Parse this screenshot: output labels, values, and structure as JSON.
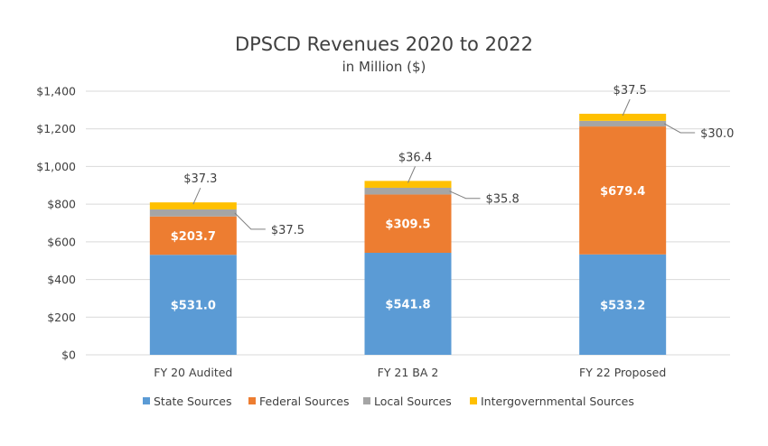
{
  "chart_data": {
    "type": "bar",
    "stacked": true,
    "title": "DPSCD Revenues 2020 to 2022",
    "subtitle": "in Million ($)",
    "categories": [
      "FY 20 Audited",
      "FY 21 BA 2",
      "FY 22 Proposed"
    ],
    "ylim": [
      0,
      1400
    ],
    "yticks": [
      0,
      200,
      400,
      600,
      800,
      1000,
      1200,
      1400
    ],
    "ytick_labels": [
      "$0",
      "$200",
      "$400",
      "$600",
      "$800",
      "$1,000",
      "$1,200",
      "$1,400"
    ],
    "grid": true,
    "legend_position": "bottom",
    "series": [
      {
        "name": "State Sources",
        "color": "#5B9BD5",
        "values": [
          531.0,
          541.8,
          533.2
        ],
        "labels": [
          "$531.0",
          "$541.8",
          "$533.2"
        ]
      },
      {
        "name": "Federal Sources",
        "color": "#ED7D31",
        "values": [
          203.7,
          309.5,
          679.4
        ],
        "labels": [
          "$203.7",
          "$309.5",
          "$679.4"
        ]
      },
      {
        "name": "Local Sources",
        "color": "#A5A5A5",
        "values": [
          37.5,
          35.8,
          30.0
        ],
        "labels": [
          "$37.5",
          "$35.8",
          "$30.0"
        ]
      },
      {
        "name": "Intergovernmental Sources",
        "color": "#FFC000",
        "values": [
          37.3,
          36.4,
          37.5
        ],
        "labels": [
          "$37.3",
          "$36.4",
          "$37.5"
        ]
      }
    ]
  }
}
